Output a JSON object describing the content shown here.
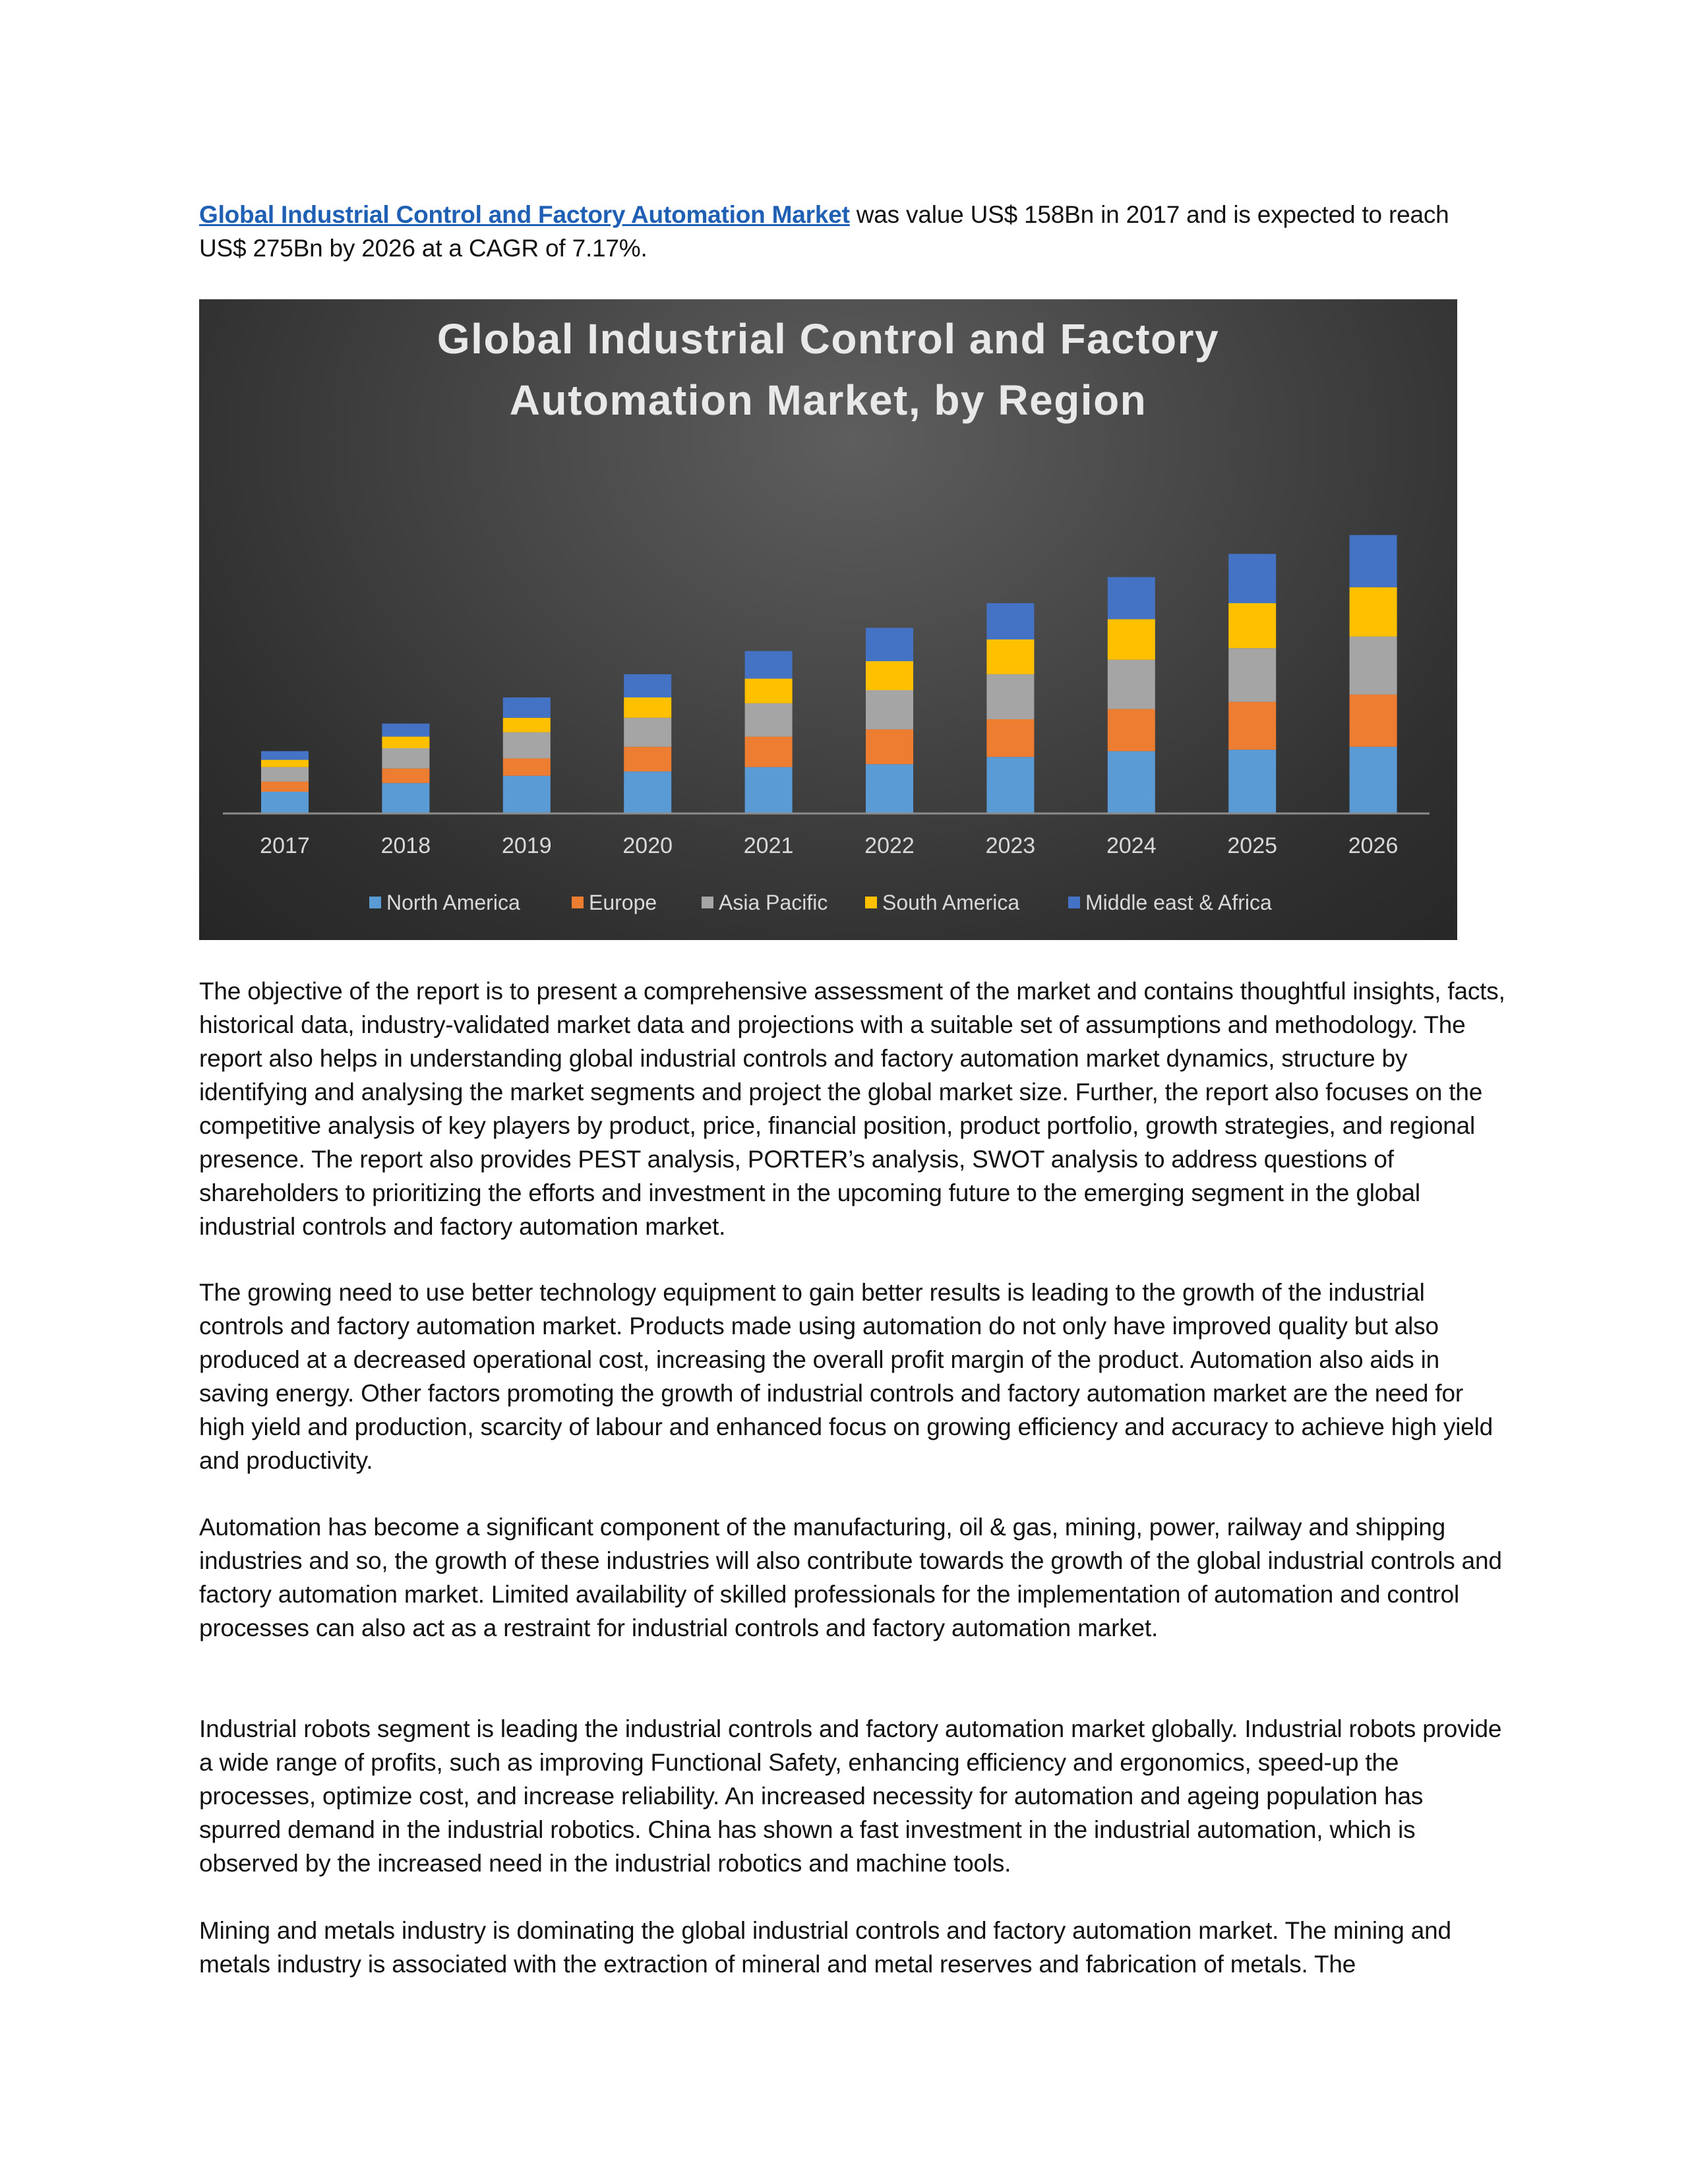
{
  "intro": {
    "link_text": "Global Industrial Control and Factory Automation Market",
    "rest_text": " was value US$ 158Bn in 2017 and is expected to reach US$ 275Bn by 2026 at a CAGR of 7.17%."
  },
  "chart_data": {
    "type": "bar",
    "stacked": true,
    "title_line1": "Global Industrial Control and Factory",
    "title_line2": "Automation Market, by Region",
    "categories": [
      "2017",
      "2018",
      "2019",
      "2020",
      "2021",
      "2022",
      "2023",
      "2024",
      "2025",
      "2026"
    ],
    "series": [
      {
        "name": "North America",
        "color": "#5b9bd5",
        "values": [
          7.5,
          10.5,
          13,
          14.5,
          16,
          17,
          19.5,
          21.5,
          22,
          23
        ]
      },
      {
        "name": "Europe",
        "color": "#ed7d31",
        "values": [
          3.5,
          5,
          6,
          8.5,
          10.5,
          12,
          13,
          14.5,
          16.5,
          18
        ]
      },
      {
        "name": "Asia Pacific",
        "color": "#a5a5a5",
        "values": [
          5,
          7,
          9,
          10,
          11.5,
          13.5,
          15.5,
          17,
          18.5,
          20
        ]
      },
      {
        "name": "South America",
        "color": "#ffc000",
        "values": [
          2.5,
          4,
          5,
          7,
          8.5,
          10,
          12,
          14,
          15.5,
          17
        ]
      },
      {
        "name": "Middle east & Africa",
        "color": "#4472c4",
        "values": [
          3,
          4.5,
          7,
          8,
          9.5,
          11.5,
          12.5,
          14.5,
          17,
          18
        ]
      }
    ],
    "xlabel": "",
    "ylabel": "",
    "grid": false,
    "legend": "bottom"
  },
  "paragraphs": [
    "The objective of the report is to present a comprehensive assessment of the market and contains thoughtful insights, facts, historical data, industry-validated market data and projections with a suitable set of assumptions and methodology. The report also helps in understanding global industrial controls and factory automation market dynamics, structure by identifying and analysing the market segments and project the global market size. Further, the report also focuses on the competitive analysis of key players by product, price, financial position, product portfolio, growth strategies, and regional presence. The report also provides PEST analysis, PORTER’s analysis, SWOT analysis to address questions of shareholders to prioritizing the efforts and investment in the upcoming future to the emerging segment in the global industrial controls and factory automation market.",
    "The growing need to use better technology equipment to gain better results is leading to the growth of the industrial controls and factory automation market. Products made using automation do not only have improved quality but also produced at a decreased operational cost, increasing the overall profit margin of the product. Automation also aids in saving energy. Other factors promoting the growth of industrial controls and factory automation market are the need for high yield and production, scarcity of labour and enhanced focus on growing efficiency and accuracy to achieve high yield and productivity.",
    "Automation has become a significant component of the manufacturing, oil & gas, mining, power, railway and shipping industries and so, the growth of these industries will also contribute towards the growth of the global industrial controls and factory automation market. Limited availability of skilled professionals for the implementation of automation and control processes can also act as a restraint for industrial controls and factory automation market.",
    "Industrial robots segment is leading the industrial controls and factory automation market globally. Industrial robots provide a wide range of profits, such as improving Functional Safety, enhancing efficiency and ergonomics, speed-up the processes, optimize cost, and increase reliability. An increased necessity for automation and ageing population has spurred demand in the industrial robotics. China has shown a fast investment in the industrial automation, which is observed by the increased need in the industrial robotics and machine tools.",
    "Mining and metals industry is dominating the global industrial controls and factory automation market. The mining and metals industry is associated with the extraction of mineral and metal reserves and fabrication of metals. The"
  ]
}
